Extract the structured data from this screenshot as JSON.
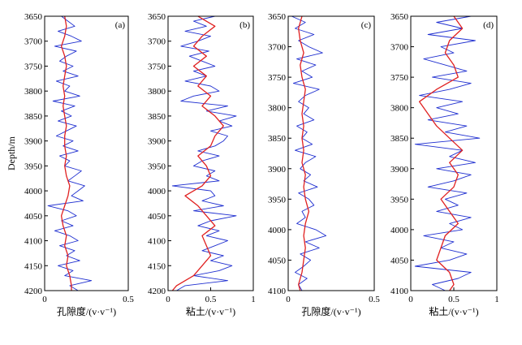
{
  "chart_data": [
    {
      "type": "line",
      "panel_label": "(a)",
      "xlabel": "孔隙度/(v·v⁻¹)",
      "ylabel": "Depth/m",
      "xlim": [
        0,
        0.5
      ],
      "ylim": [
        3650,
        4200
      ],
      "x_ticks": [
        "0",
        "0.5"
      ],
      "y_ticks": [
        "3650",
        "3700",
        "3750",
        "3800",
        "3850",
        "3900",
        "3950",
        "4000",
        "4050",
        "4100",
        "4150",
        "4200"
      ],
      "y_inverted": true,
      "series": [
        {
          "color": "#1f2fd0",
          "style": "raw-log",
          "depth": [
            3650,
            3660,
            3670,
            3680,
            3690,
            3700,
            3710,
            3720,
            3730,
            3740,
            3750,
            3760,
            3770,
            3780,
            3790,
            3800,
            3810,
            3820,
            3830,
            3840,
            3850,
            3860,
            3870,
            3880,
            3890,
            3900,
            3910,
            3920,
            3930,
            3940,
            3950,
            3960,
            3970,
            3980,
            3990,
            4000,
            4010,
            4020,
            4030,
            4040,
            4050,
            4060,
            4070,
            4080,
            4090,
            4100,
            4110,
            4120,
            4130,
            4140,
            4150,
            4160,
            4170,
            4180,
            4190,
            4200
          ],
          "values": [
            0.1,
            0.14,
            0.18,
            0.08,
            0.16,
            0.22,
            0.06,
            0.19,
            0.13,
            0.09,
            0.17,
            0.11,
            0.2,
            0.07,
            0.15,
            0.12,
            0.21,
            0.05,
            0.18,
            0.1,
            0.16,
            0.08,
            0.19,
            0.13,
            0.07,
            0.17,
            0.11,
            0.2,
            0.09,
            0.15,
            0.12,
            0.22,
            0.18,
            0.14,
            0.24,
            0.2,
            0.16,
            0.23,
            0.02,
            0.14,
            0.19,
            0.1,
            0.17,
            0.06,
            0.15,
            0.2,
            0.09,
            0.18,
            0.13,
            0.21,
            0.08,
            0.17,
            0.12,
            0.28,
            0.15,
            0.2
          ]
        },
        {
          "color": "#e02020",
          "style": "smooth",
          "depth": [
            3650,
            3670,
            3690,
            3710,
            3730,
            3750,
            3770,
            3790,
            3810,
            3830,
            3850,
            3870,
            3890,
            3910,
            3930,
            3950,
            3970,
            3990,
            4010,
            4030,
            4050,
            4070,
            4090,
            4110,
            4130,
            4150,
            4170,
            4190,
            4200
          ],
          "values": [
            0.12,
            0.13,
            0.12,
            0.1,
            0.12,
            0.13,
            0.12,
            0.11,
            0.12,
            0.11,
            0.12,
            0.13,
            0.12,
            0.12,
            0.13,
            0.12,
            0.13,
            0.15,
            0.14,
            0.12,
            0.1,
            0.11,
            0.13,
            0.12,
            0.14,
            0.13,
            0.15,
            0.16,
            0.16
          ]
        }
      ]
    },
    {
      "type": "line",
      "panel_label": "(b)",
      "xlabel": "粘土/(v·v⁻¹)",
      "xlim": [
        0,
        1
      ],
      "ylim": [
        3650,
        4200
      ],
      "x_ticks": [
        "0",
        "0.5",
        "1"
      ],
      "y_ticks": [
        "3650",
        "3700",
        "3750",
        "3800",
        "3850",
        "3900",
        "3950",
        "4000",
        "4050",
        "4100",
        "4150",
        "4200"
      ],
      "y_inverted": true,
      "series": [
        {
          "color": "#1f2fd0",
          "style": "raw-log",
          "depth": [
            3650,
            3660,
            3670,
            3680,
            3690,
            3700,
            3710,
            3720,
            3730,
            3740,
            3750,
            3760,
            3770,
            3780,
            3790,
            3800,
            3810,
            3820,
            3830,
            3840,
            3850,
            3860,
            3870,
            3880,
            3890,
            3900,
            3910,
            3920,
            3930,
            3940,
            3950,
            3960,
            3970,
            3980,
            3990,
            4000,
            4010,
            4020,
            4030,
            4040,
            4050,
            4060,
            4070,
            4080,
            4090,
            4100,
            4110,
            4120,
            4130,
            4140,
            4150,
            4160,
            4170,
            4180,
            4190,
            4200
          ],
          "values": [
            0.55,
            0.3,
            0.45,
            0.2,
            0.5,
            0.35,
            0.15,
            0.48,
            0.25,
            0.4,
            0.55,
            0.3,
            0.45,
            0.2,
            0.5,
            0.6,
            0.3,
            0.15,
            0.7,
            0.45,
            0.8,
            0.6,
            0.75,
            0.5,
            0.7,
            0.65,
            0.55,
            0.35,
            0.6,
            0.4,
            0.3,
            0.55,
            0.45,
            0.6,
            0.05,
            0.5,
            0.55,
            0.4,
            0.65,
            0.3,
            0.8,
            0.5,
            0.35,
            0.6,
            0.45,
            0.7,
            0.55,
            0.4,
            0.65,
            0.5,
            0.75,
            0.6,
            0.3,
            0.7,
            0.2,
            0.1
          ]
        },
        {
          "color": "#e02020",
          "style": "smooth",
          "depth": [
            3650,
            3670,
            3690,
            3710,
            3730,
            3750,
            3770,
            3790,
            3810,
            3830,
            3850,
            3870,
            3890,
            3910,
            3930,
            3950,
            3970,
            3990,
            4010,
            4030,
            4050,
            4070,
            4090,
            4110,
            4130,
            4150,
            4170,
            4190,
            4200
          ],
          "values": [
            0.35,
            0.55,
            0.4,
            0.3,
            0.45,
            0.3,
            0.45,
            0.35,
            0.5,
            0.4,
            0.55,
            0.65,
            0.55,
            0.5,
            0.35,
            0.45,
            0.5,
            0.4,
            0.2,
            0.35,
            0.45,
            0.55,
            0.4,
            0.45,
            0.5,
            0.4,
            0.3,
            0.1,
            0.05
          ]
        }
      ]
    },
    {
      "type": "line",
      "panel_label": "(c)",
      "xlabel": "孔隙度/(v·v⁻¹)",
      "xlim": [
        0,
        0.5
      ],
      "ylim": [
        3650,
        4100
      ],
      "x_ticks": [
        "0",
        "0.5"
      ],
      "y_ticks": [
        "3650",
        "3700",
        "3750",
        "3800",
        "3850",
        "3900",
        "3950",
        "4000",
        "4050",
        "4100"
      ],
      "y_inverted": true,
      "series": [
        {
          "color": "#1f2fd0",
          "style": "raw-log",
          "depth": [
            3650,
            3660,
            3670,
            3680,
            3690,
            3700,
            3710,
            3720,
            3730,
            3740,
            3750,
            3760,
            3770,
            3780,
            3790,
            3800,
            3810,
            3820,
            3830,
            3840,
            3850,
            3860,
            3870,
            3880,
            3890,
            3900,
            3910,
            3920,
            3930,
            3940,
            3950,
            3960,
            3970,
            3980,
            3990,
            4000,
            4010,
            4020,
            4030,
            4040,
            4050,
            4060,
            4070,
            4080,
            4090,
            4100
          ],
          "values": [
            0.02,
            0.1,
            0.04,
            0.15,
            0.06,
            0.12,
            0.2,
            0.05,
            0.16,
            0.08,
            0.14,
            0.03,
            0.18,
            0.1,
            0.06,
            0.12,
            0.09,
            0.15,
            0.05,
            0.11,
            0.08,
            0.14,
            0.04,
            0.16,
            0.1,
            0.07,
            0.13,
            0.09,
            0.17,
            0.06,
            0.12,
            0.15,
            0.08,
            0.1,
            0.05,
            0.16,
            0.22,
            0.1,
            0.18,
            0.07,
            0.13,
            0.09,
            0.04,
            0.11,
            0.06,
            0.08
          ]
        },
        {
          "color": "#e02020",
          "style": "smooth",
          "depth": [
            3650,
            3670,
            3690,
            3710,
            3730,
            3750,
            3770,
            3790,
            3810,
            3830,
            3850,
            3870,
            3890,
            3910,
            3930,
            3950,
            3970,
            3990,
            4010,
            4030,
            4050,
            4070,
            4090,
            4100
          ],
          "values": [
            0.08,
            0.06,
            0.07,
            0.09,
            0.07,
            0.08,
            0.1,
            0.09,
            0.08,
            0.09,
            0.08,
            0.09,
            0.08,
            0.1,
            0.09,
            0.1,
            0.12,
            0.1,
            0.09,
            0.1,
            0.09,
            0.08,
            0.06,
            0.07
          ]
        }
      ]
    },
    {
      "type": "line",
      "panel_label": "(d)",
      "xlabel": "粘土/(v·v⁻¹)",
      "xlim": [
        0,
        1
      ],
      "ylim": [
        3650,
        4100
      ],
      "x_ticks": [
        "0",
        "0.5",
        "1"
      ],
      "y_ticks": [
        "3650",
        "3700",
        "3750",
        "3800",
        "3850",
        "3900",
        "3950",
        "4000",
        "4050",
        "4100"
      ],
      "y_inverted": true,
      "series": [
        {
          "color": "#1f2fd0",
          "style": "raw-log",
          "depth": [
            3650,
            3660,
            3670,
            3680,
            3690,
            3700,
            3710,
            3720,
            3730,
            3740,
            3750,
            3760,
            3770,
            3780,
            3790,
            3800,
            3810,
            3820,
            3830,
            3840,
            3850,
            3860,
            3870,
            3880,
            3890,
            3900,
            3910,
            3920,
            3930,
            3940,
            3950,
            3960,
            3970,
            3980,
            3990,
            4000,
            4010,
            4020,
            4030,
            4040,
            4050,
            4060,
            4070,
            4080,
            4090,
            4100
          ],
          "values": [
            0.7,
            0.3,
            0.6,
            0.2,
            0.75,
            0.35,
            0.5,
            0.15,
            0.4,
            0.65,
            0.25,
            0.7,
            0.45,
            0.1,
            0.6,
            0.3,
            0.55,
            0.2,
            0.65,
            0.4,
            0.8,
            0.05,
            0.6,
            0.45,
            0.75,
            0.3,
            0.7,
            0.5,
            0.2,
            0.65,
            0.4,
            0.55,
            0.3,
            0.7,
            0.45,
            0.6,
            0.15,
            0.5,
            0.35,
            0.65,
            0.45,
            0.05,
            0.7,
            0.55,
            0.25,
            0.4
          ]
        },
        {
          "color": "#e02020",
          "style": "smooth",
          "depth": [
            3650,
            3670,
            3690,
            3710,
            3730,
            3750,
            3770,
            3790,
            3810,
            3830,
            3850,
            3870,
            3890,
            3910,
            3930,
            3950,
            3970,
            3990,
            4010,
            4030,
            4050,
            4070,
            4090,
            4100
          ],
          "values": [
            0.5,
            0.6,
            0.45,
            0.4,
            0.5,
            0.55,
            0.3,
            0.1,
            0.2,
            0.3,
            0.45,
            0.6,
            0.45,
            0.55,
            0.5,
            0.35,
            0.45,
            0.55,
            0.4,
            0.35,
            0.3,
            0.45,
            0.5,
            0.45
          ]
        }
      ]
    }
  ]
}
